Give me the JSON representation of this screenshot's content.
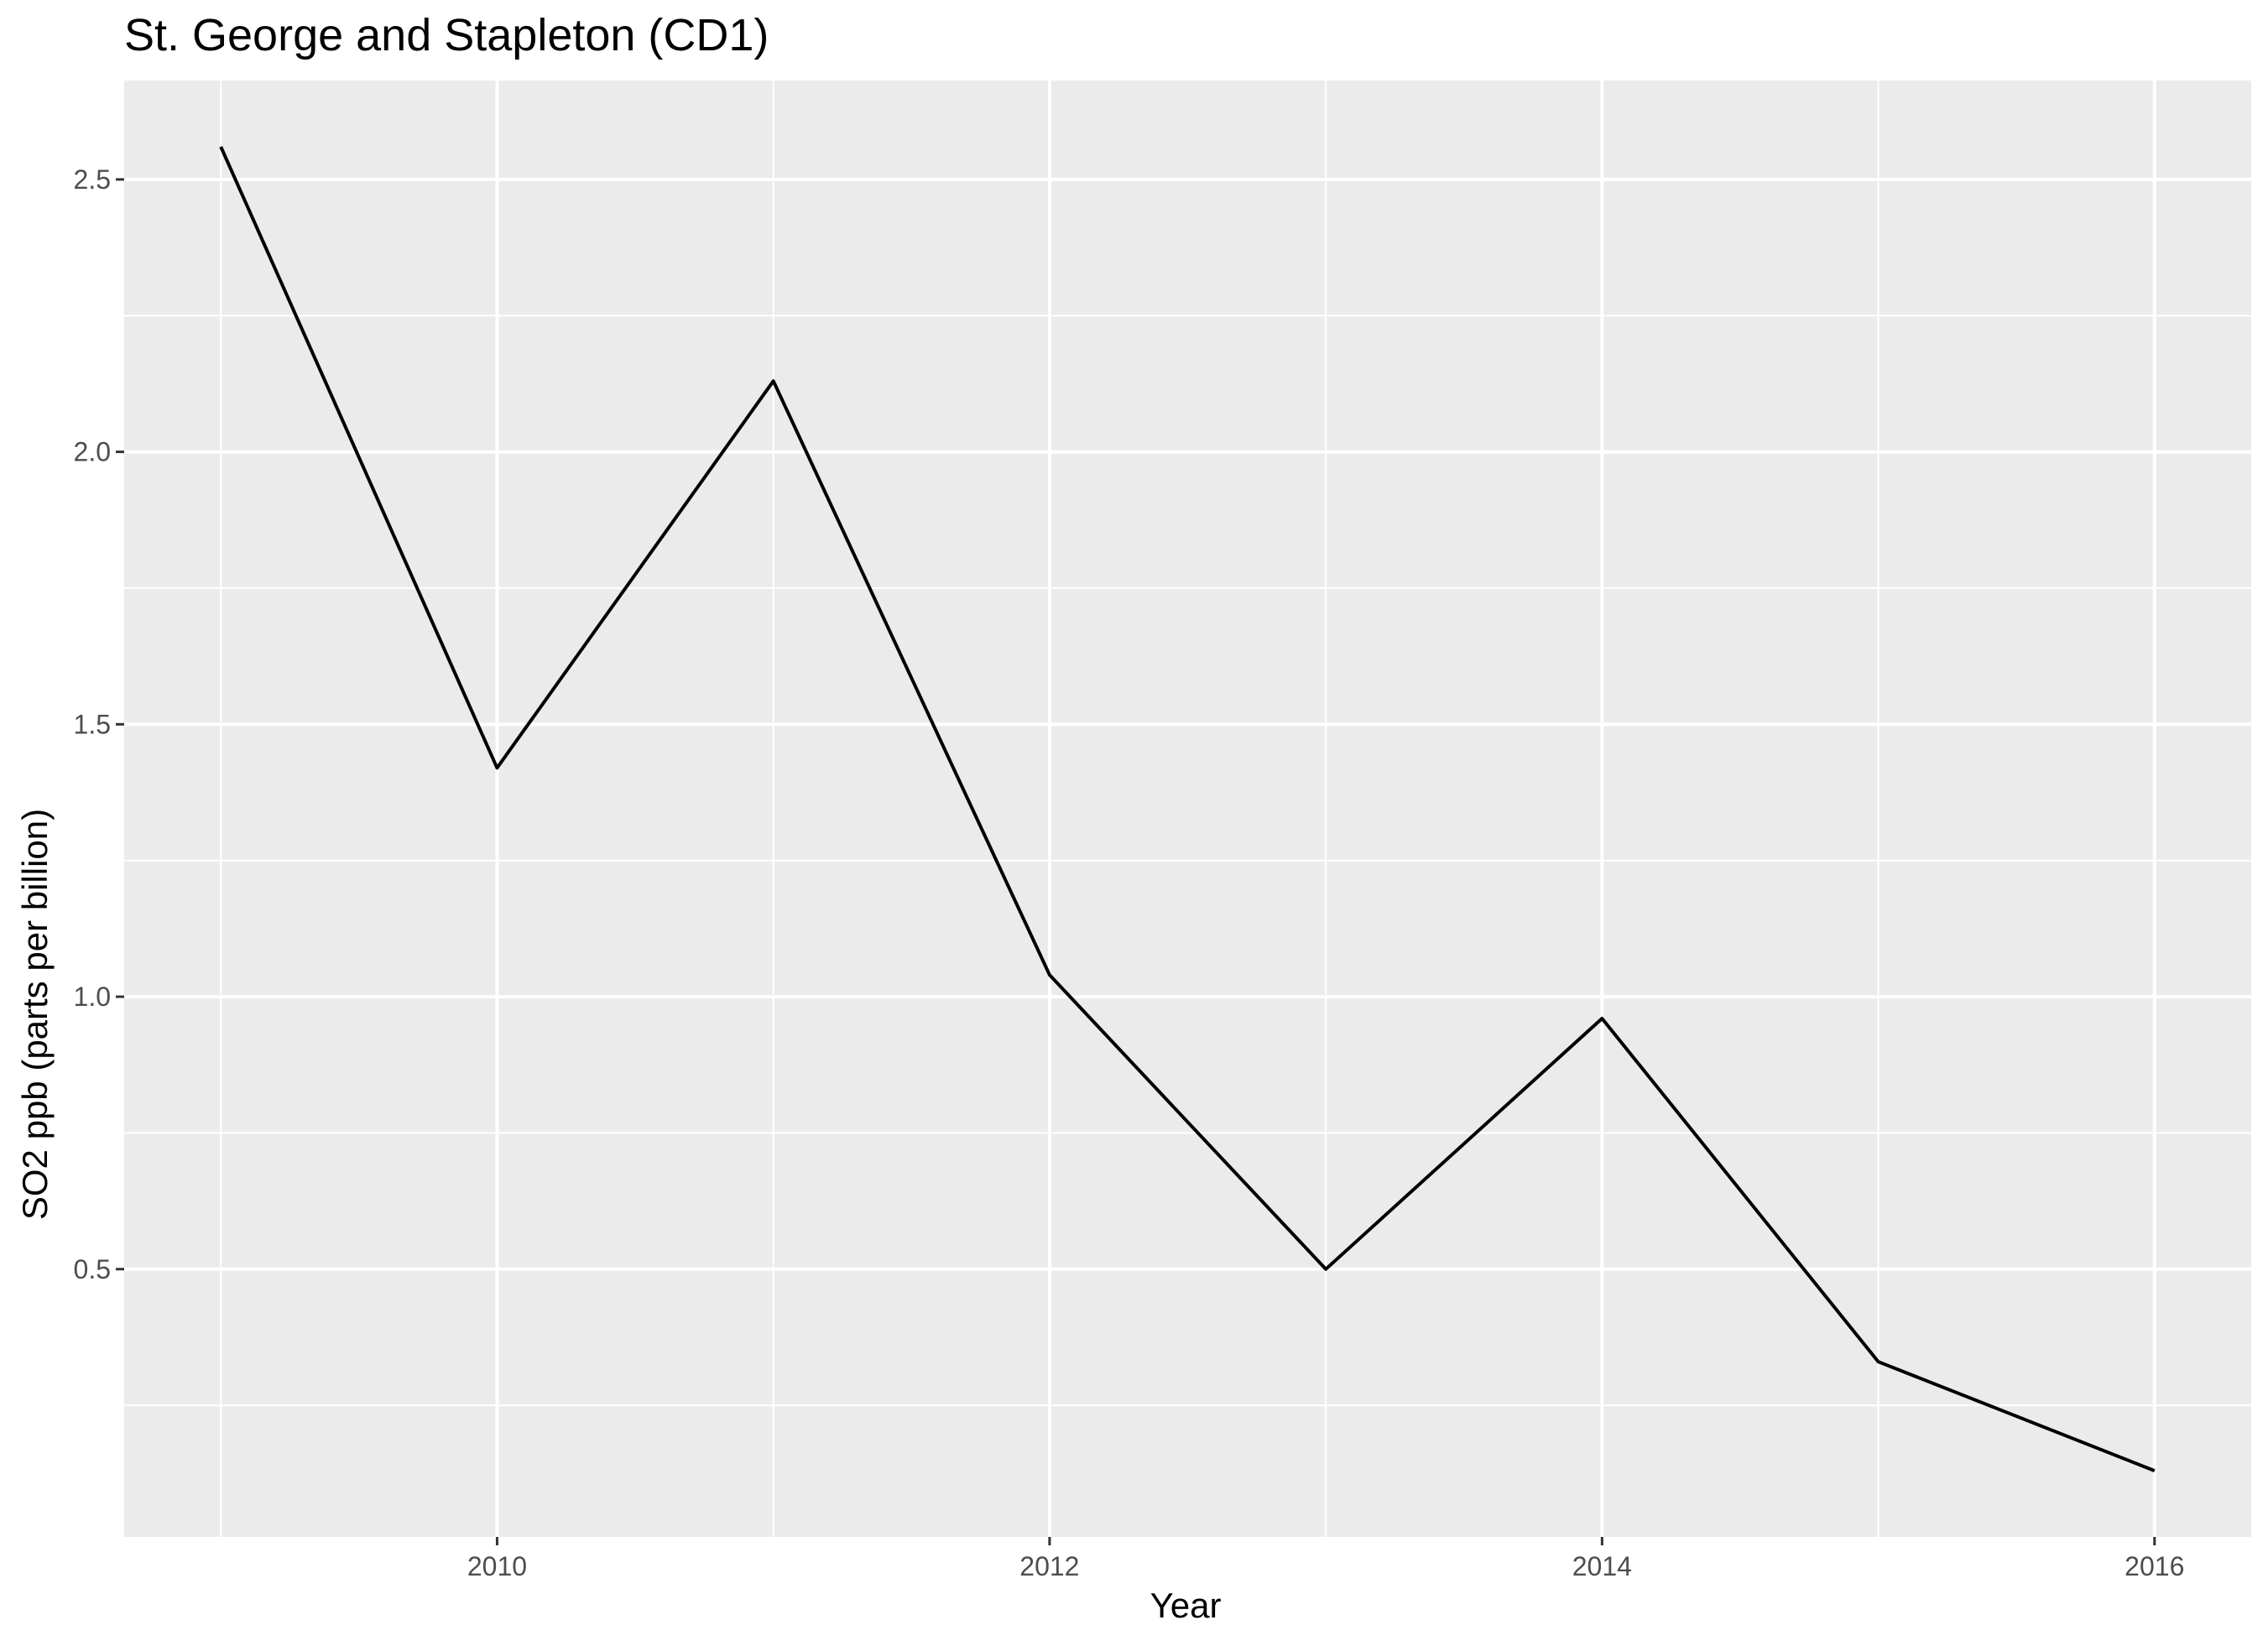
{
  "chart_data": {
    "type": "line",
    "title": "St. George and Stapleton (CD1)",
    "xlabel": "Year",
    "ylabel": "SO2 ppb (parts per billion)",
    "x": [
      2009,
      2010,
      2011,
      2012,
      2013,
      2014,
      2015,
      2016
    ],
    "series": [
      {
        "values": [
          2.56,
          1.42,
          2.13,
          1.04,
          0.5,
          0.96,
          0.33,
          0.13
        ]
      }
    ],
    "xlim": [
      2008.65,
      2016.35
    ],
    "ylim": [
      0.0085,
      2.6815
    ],
    "x_ticks": [
      2010,
      2012,
      2014,
      2016
    ],
    "x_tick_labels": [
      "2010",
      "2012",
      "2014",
      "2016"
    ],
    "y_ticks": [
      0.5,
      1.0,
      1.5,
      2.0,
      2.5
    ],
    "y_tick_labels": [
      "0.5",
      "1.0",
      "1.5",
      "2.0",
      "2.5"
    ],
    "x_minor_ticks": [
      2009,
      2011,
      2013,
      2015
    ],
    "y_minor_ticks": [
      0.25,
      0.75,
      1.25,
      1.75,
      2.25
    ],
    "grid": true,
    "legend": "none",
    "colors": {
      "panel": "#ebebeb",
      "grid": "#ffffff",
      "line": "#000000",
      "tick_text": "#4d4d4d",
      "text": "#000000"
    }
  }
}
